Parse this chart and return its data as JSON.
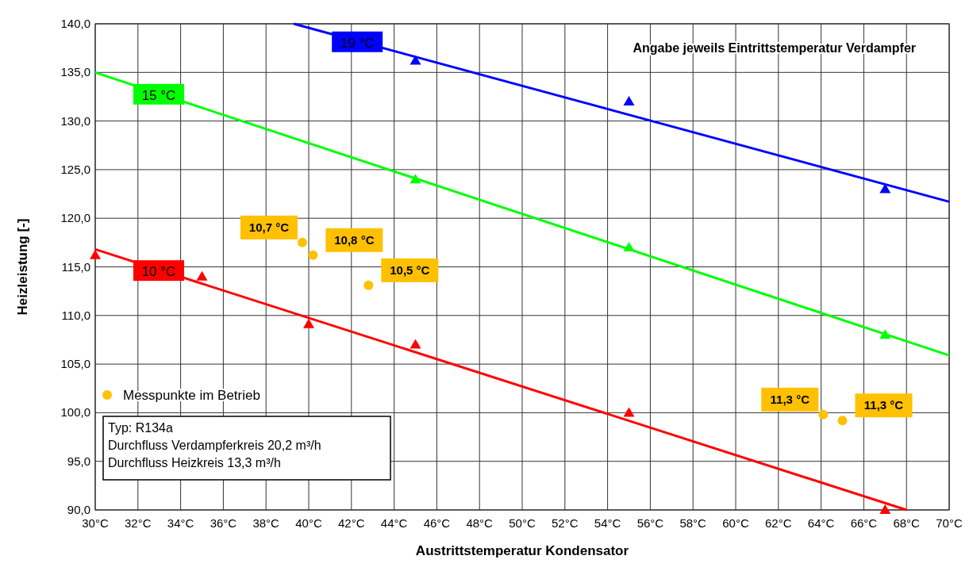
{
  "chart_data": {
    "type": "line",
    "xlabel": "Austrittstemperatur Kondensator",
    "ylabel": "Heizleistung [-]",
    "xlim": [
      30,
      70
    ],
    "ylim": [
      90,
      140
    ],
    "xticks": [
      {
        "value": 30,
        "label": "30°C"
      },
      {
        "value": 32,
        "label": "32°C"
      },
      {
        "value": 34,
        "label": "34°C"
      },
      {
        "value": 36,
        "label": "36°C"
      },
      {
        "value": 38,
        "label": "38°C"
      },
      {
        "value": 40,
        "label": "40°C"
      },
      {
        "value": 42,
        "label": "42°C"
      },
      {
        "value": 44,
        "label": "44°C"
      },
      {
        "value": 46,
        "label": "46°C"
      },
      {
        "value": 48,
        "label": "48°C"
      },
      {
        "value": 50,
        "label": "50°C"
      },
      {
        "value": 52,
        "label": "52°C"
      },
      {
        "value": 54,
        "label": "54°C"
      },
      {
        "value": 56,
        "label": "56°C"
      },
      {
        "value": 58,
        "label": "58°C"
      },
      {
        "value": 60,
        "label": "60°C"
      },
      {
        "value": 62,
        "label": "62°C"
      },
      {
        "value": 64,
        "label": "64°C"
      },
      {
        "value": 66,
        "label": "66°C"
      },
      {
        "value": 68,
        "label": "68°C"
      },
      {
        "value": 70,
        "label": "70°C"
      }
    ],
    "yticks": [
      {
        "value": 90,
        "label": "90,0"
      },
      {
        "value": 95,
        "label": "95,0"
      },
      {
        "value": 100,
        "label": "100,0"
      },
      {
        "value": 105,
        "label": "105,0"
      },
      {
        "value": 110,
        "label": "110,0"
      },
      {
        "value": 115,
        "label": "115,0"
      },
      {
        "value": 120,
        "label": "120,0"
      },
      {
        "value": 125,
        "label": "125,0"
      },
      {
        "value": 130,
        "label": "130,0"
      },
      {
        "value": 135,
        "label": "135,0"
      },
      {
        "value": 140,
        "label": "140,0"
      }
    ],
    "grid": true,
    "legend": "bottom left",
    "series": [
      {
        "name": "10 °C",
        "color": "#ff0000",
        "x": [
          30,
          68
        ],
        "values": [
          116.8,
          90
        ],
        "marker": "none"
      },
      {
        "name": "15 °C",
        "color": "#00ff00",
        "x": [
          30,
          70
        ],
        "values": [
          135,
          105.9
        ],
        "marker": "none"
      },
      {
        "name": "19 °C",
        "color": "#0000ff",
        "x": [
          39.3,
          70
        ],
        "values": [
          140,
          121.7
        ],
        "marker": "none"
      },
      {
        "type": "scatter",
        "color": "#ff0000",
        "x": [
          30,
          35,
          40,
          45,
          55,
          67
        ],
        "values": [
          116.2,
          114,
          109.1,
          107,
          100,
          90
        ],
        "marker": "triangle"
      },
      {
        "type": "scatter",
        "color": "#00ff00",
        "x": [
          45,
          55,
          67
        ],
        "values": [
          124,
          117,
          108
        ],
        "marker": "triangle"
      },
      {
        "type": "scatter",
        "color": "#0000ff",
        "x": [
          45,
          55,
          67
        ],
        "values": [
          136.2,
          132,
          123
        ],
        "marker": "triangle"
      },
      {
        "type": "scatter",
        "name": "Messpunkte im Betrieb",
        "color": "#ffc000",
        "x": [
          39.7,
          40.2,
          42.8,
          64.1,
          65
        ],
        "values": [
          117.5,
          116.2,
          113.1,
          99.8,
          99.2
        ],
        "marker": "circle"
      }
    ],
    "annotations": [
      "Angabe jeweils Eintrittstemperatur Verdampfer",
      "Typ: R134a",
      "Durchfluss Verdampferkreis 20,2 m³/h",
      "Durchfluss Heizkreis 13,3 m³/h",
      {
        "text": "10,7 °C",
        "x": 39.7,
        "y": 117.5
      },
      {
        "text": "10,8 °C",
        "x": 40.2,
        "y": 116.2
      },
      {
        "text": "10,5 °C",
        "x": 42.8,
        "y": 113.1
      },
      {
        "text": "11,3 °C",
        "x": 64.1,
        "y": 99.8
      },
      {
        "text": "11,3 °C",
        "x": 65,
        "y": 99.2
      }
    ]
  }
}
